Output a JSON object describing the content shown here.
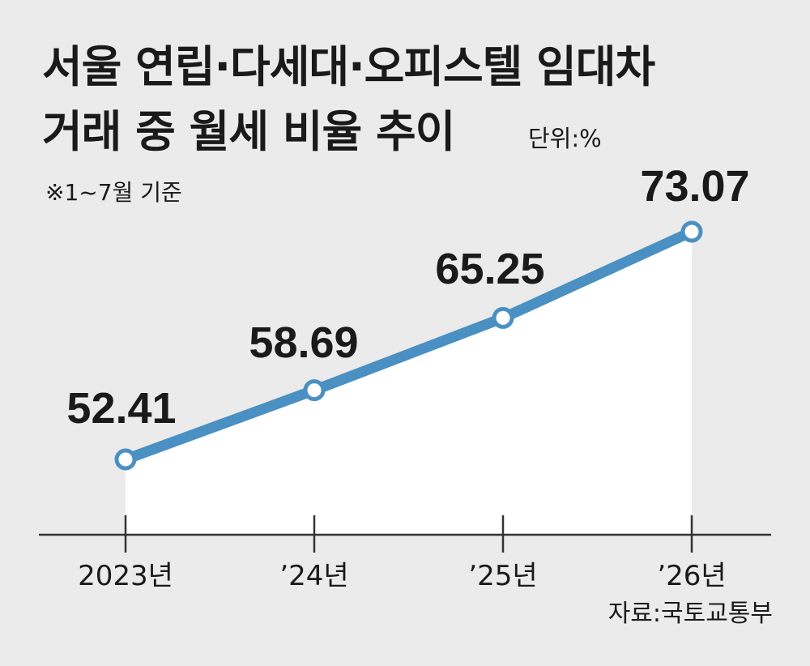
{
  "title_line1": "서울 연립·다세대·오피스텔 임대차",
  "title_line2": "거래 중 월세 비율 추이",
  "unit": "단위:%",
  "note": "※1~7월 기준",
  "source": "자료:국토교통부",
  "colors": {
    "line": "#4a90c2",
    "area": "#ffffff",
    "background": "#ebebeb"
  },
  "chart_data": {
    "type": "line",
    "categories": [
      "2023년",
      "’24년",
      "’25년",
      "’26년"
    ],
    "values": [
      52.41,
      58.69,
      65.25,
      73.07
    ],
    "data_labels": [
      "52.41",
      "58.69",
      "65.25",
      "73.07"
    ],
    "title": "서울 연립·다세대·오피스텔 임대차 거래 중 월세 비율 추이",
    "ylabel": "",
    "xlabel": "",
    "grid": false,
    "area_fill": true
  }
}
